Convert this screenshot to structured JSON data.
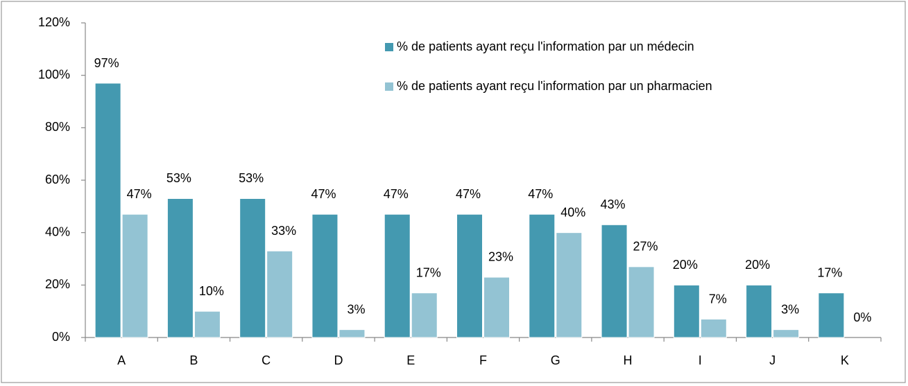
{
  "chart_data": {
    "type": "bar",
    "categories": [
      "A",
      "B",
      "C",
      "D",
      "E",
      "F",
      "G",
      "H",
      "I",
      "J",
      "K"
    ],
    "series": [
      {
        "name": "% de patients ayant reçu l'information par un médecin",
        "color": "#4499b0",
        "values": [
          97,
          53,
          53,
          47,
          47,
          47,
          47,
          43,
          20,
          20,
          17
        ],
        "value_labels": [
          "97%",
          "53%",
          "53%",
          "47%",
          "47%",
          "47%",
          "47%",
          "43%",
          "20%",
          "20%",
          "17%"
        ]
      },
      {
        "name": "% de patients ayant reçu l'information par un pharmacien",
        "color": "#93c3d3",
        "values": [
          47,
          10,
          33,
          3,
          17,
          23,
          40,
          27,
          7,
          3,
          0
        ],
        "value_labels": [
          "47%",
          "10%",
          "33%",
          "3%",
          "17%",
          "23%",
          "40%",
          "27%",
          "7%",
          "3%",
          "0%"
        ]
      }
    ],
    "ylim": [
      0,
      120
    ],
    "yticks": [
      {
        "value": 0,
        "label": "0%"
      },
      {
        "value": 20,
        "label": "20%"
      },
      {
        "value": 40,
        "label": "40%"
      },
      {
        "value": 60,
        "label": "60%"
      },
      {
        "value": 80,
        "label": "80%"
      },
      {
        "value": 100,
        "label": "100%"
      },
      {
        "value": 120,
        "label": "120%"
      }
    ],
    "grid": false,
    "legend": "top-right"
  }
}
